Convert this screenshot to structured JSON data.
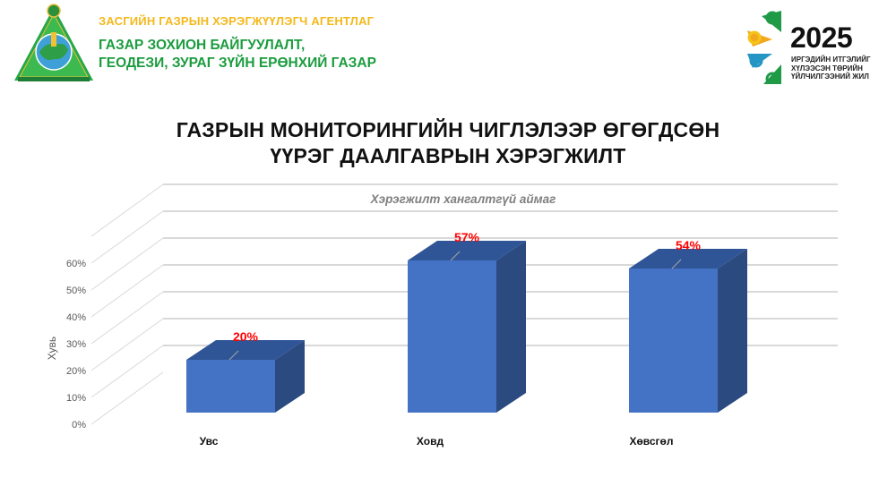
{
  "header": {
    "org_line1": "ЗАСГИЙН ГАЗРЫН ХЭРЭГЖҮҮЛЭГЧ АГЕНТЛАГ",
    "org_line2a": "ГАЗАР ЗОХИОН БАЙГУУЛАЛТ,",
    "org_line2b": "ГЕОДЕЗИ, ЗУРАГ ЗҮЙН ЕРӨНХИЙ ГАЗАР",
    "badge_year": "2025",
    "badge_line1": "ИРГЭДИЙН ИТГЭЛИЙГ",
    "badge_line2": "ХҮЛЭЭСЭН ТӨРИЙН",
    "badge_line3": "ҮЙЛЧИЛГЭЭНИЙ ЖИЛ"
  },
  "slide": {
    "title_line1": "ГАЗРЫН МОНИТОРИНГИЙН ЧИГЛЭЛЭЭР ӨГӨГДСӨН",
    "title_line2": "ҮҮРЭГ ДААЛГАВРЫН ХЭРЭГЖИЛТ"
  },
  "colors": {
    "bar_front": "#4472c4",
    "bar_top": "#2f5597",
    "bar_side": "#2a4a80",
    "value_label": "#ff0000",
    "org_yellow": "#f4b81b",
    "org_green": "#1b9c3e"
  },
  "chart_data": {
    "type": "bar",
    "style": "3d-column",
    "title": "Хэрэгжилт хангалтгүй аймаг",
    "xlabel": "",
    "ylabel": "Хувь",
    "categories": [
      "Увс",
      "Ховд",
      "Хөвсгөл"
    ],
    "values": [
      20,
      57,
      54
    ],
    "value_labels": [
      "20%",
      "57%",
      "54%"
    ],
    "y_ticks": [
      "0%",
      "10%",
      "20%",
      "30%",
      "40%",
      "50%",
      "60%"
    ],
    "ylim": [
      0,
      60
    ],
    "grid": true,
    "legend": false
  }
}
